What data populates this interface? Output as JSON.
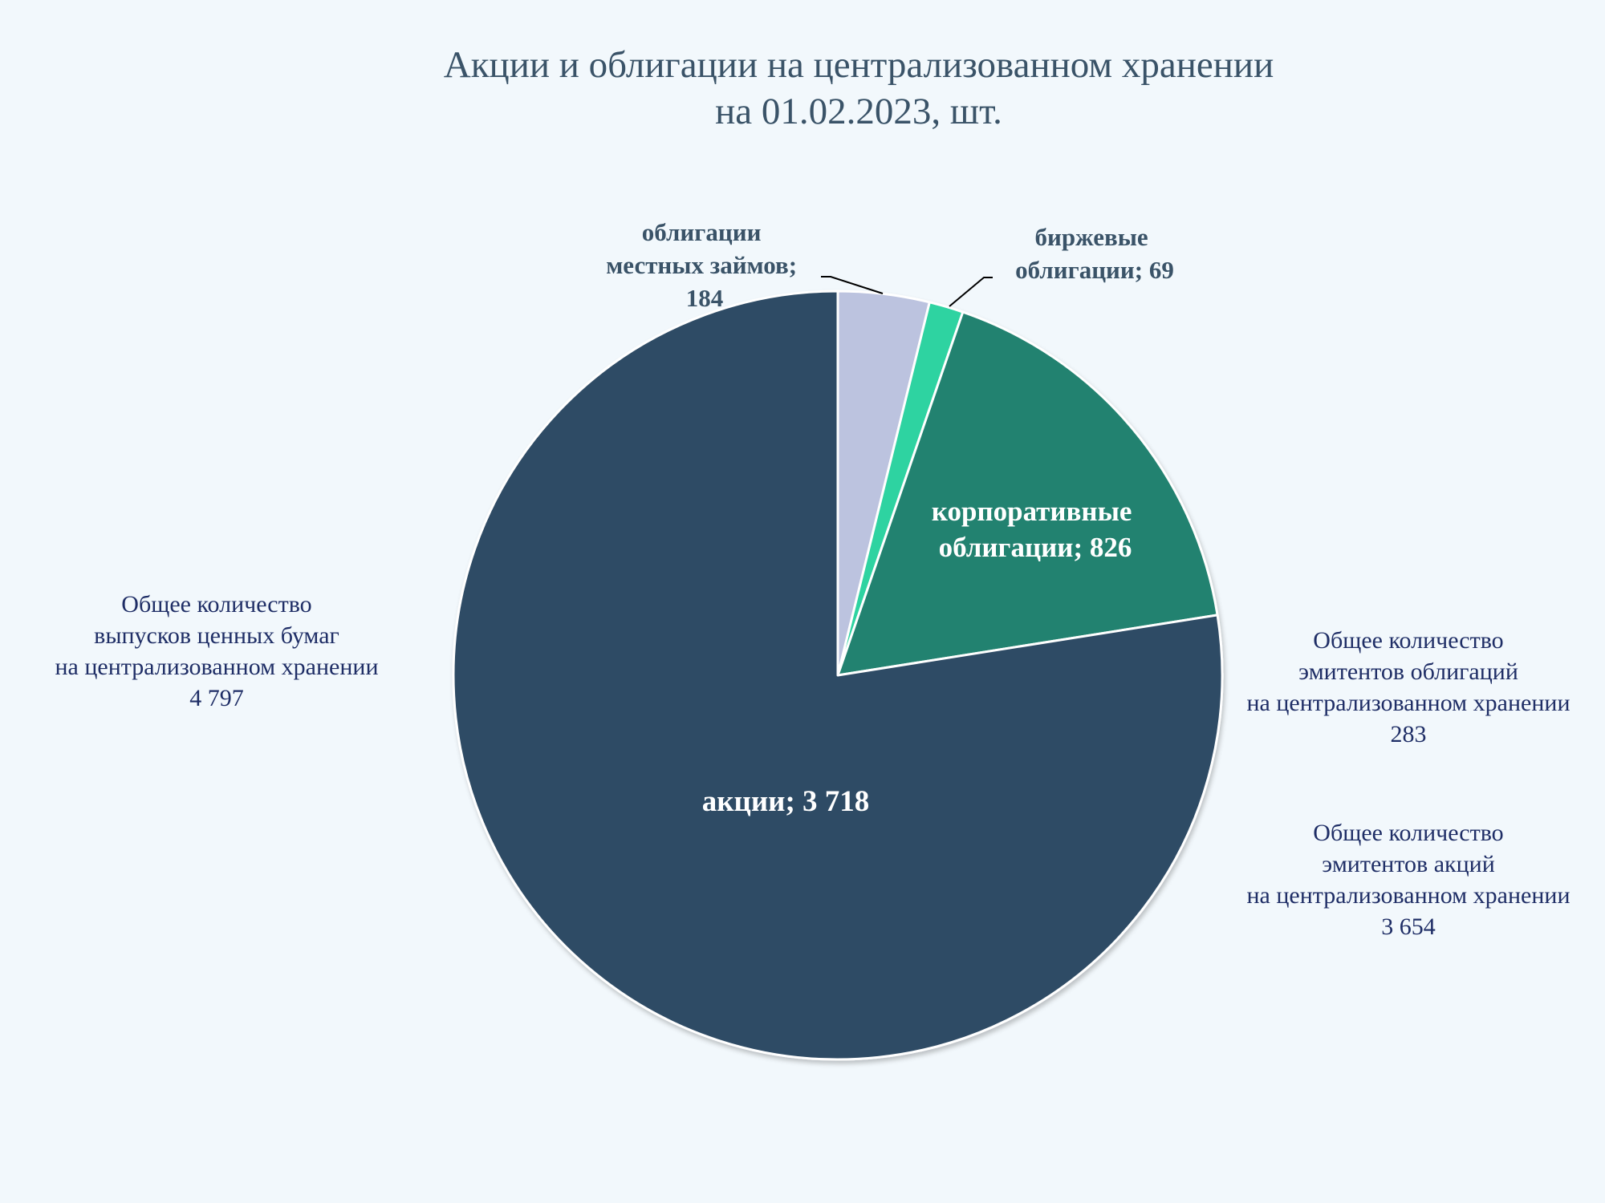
{
  "title": {
    "line1": "Акции и облигации на централизованном хранении",
    "line2": "на 01.02.2023, шт."
  },
  "chart_data": {
    "type": "pie",
    "title": "Акции и облигации на централизованном хранении на 01.02.2023, шт.",
    "categories": [
      "облигации местных займов",
      "биржевые облигации",
      "корпоративные облигации",
      "акции"
    ],
    "values": [
      184,
      69,
      826,
      3718
    ],
    "value_labels": [
      "184",
      "69",
      "826",
      "3 718"
    ],
    "colors": [
      "#bcc3df",
      "#2dd3a1",
      "#248270",
      "#2f4c65"
    ],
    "start_angle_deg": 0,
    "direction": "clockwise",
    "legend": "none"
  },
  "slice_labels": {
    "local": {
      "line1": "облигации",
      "line2": "местных займов;",
      "line3": "184"
    },
    "exchange": {
      "line1": "биржевые",
      "line2": "облигации; 69"
    },
    "corporate": {
      "line1": "корпоративные",
      "line2": "облигации; 826"
    },
    "shares": {
      "line1": "акции; 3 718"
    }
  },
  "notes": {
    "total_issues": {
      "line1": "Общее количество",
      "line2": "выпусков ценных бумаг",
      "line3": "на централизованном хранении",
      "line4": "4 797"
    },
    "bond_issuers": {
      "line1": "Общее количество",
      "line2": "эмитентов облигаций",
      "line3": "на централизованном хранении",
      "line4": "283"
    },
    "share_issuers": {
      "line1": "Общее количество",
      "line2": "эмитентов акций",
      "line3": "на централизованном хранении",
      "line4": "3 654"
    }
  }
}
